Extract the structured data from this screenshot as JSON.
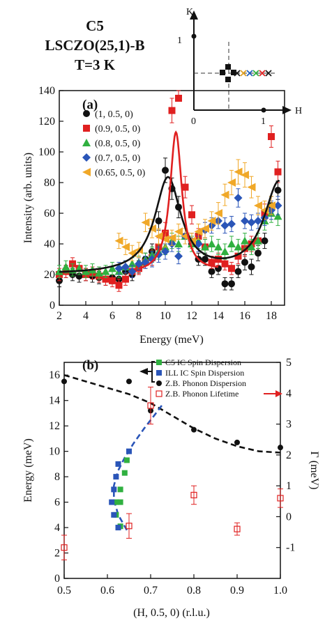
{
  "title": {
    "line1": "C5",
    "line2": "LSCZO(25,1)-B",
    "line3": "T=3 K"
  },
  "inset": {
    "k_label": "K",
    "h_label": "H",
    "tick_0": "0",
    "tick_1_h": "1",
    "tick_1_k": "1",
    "cross_colors": [
      "#1a1a1a",
      "#e0a020",
      "#2060c0",
      "#30b040",
      "#e02020",
      "#1a1a1a"
    ]
  },
  "chart_data": [
    {
      "panel": "(a)",
      "type": "scatter",
      "xlabel": "Energy (meV)",
      "ylabel": "Intensity (arb. units)",
      "xlim": [
        2,
        19
      ],
      "ylim": [
        0,
        140
      ],
      "xticks": [
        2,
        4,
        6,
        8,
        10,
        12,
        14,
        16,
        18
      ],
      "yticks": [
        0,
        20,
        40,
        60,
        80,
        100,
        120,
        140
      ],
      "legend_position": "top-left",
      "series": [
        {
          "name": "(1, 0.5, 0)",
          "color": "#111111",
          "marker": "circle",
          "x": [
            2,
            2.5,
            3,
            3.5,
            4,
            4.5,
            5,
            5.5,
            6,
            6.5,
            7,
            7.5,
            8,
            8.5,
            9,
            9.5,
            10,
            10.5,
            11,
            11.5,
            12,
            12.5,
            13,
            13.5,
            14,
            14.5,
            15,
            15.5,
            16,
            16.5,
            17,
            17.5,
            18,
            18.5
          ],
          "y": [
            16,
            22,
            20,
            19,
            20,
            19,
            18,
            17,
            18,
            17,
            22,
            20,
            25,
            30,
            35,
            55,
            88,
            76,
            64,
            45,
            40,
            30,
            30,
            22,
            24,
            14,
            14,
            22,
            28,
            25,
            34,
            42,
            65,
            75
          ],
          "errors": [
            4,
            4,
            4,
            4,
            4,
            4,
            4,
            4,
            4,
            4,
            4,
            4,
            4,
            4,
            5,
            6,
            8,
            7,
            7,
            5,
            5,
            4,
            4,
            4,
            4,
            4,
            4,
            4,
            5,
            5,
            5,
            5,
            6,
            6
          ]
        },
        {
          "name": "(0.9, 0.5, 0)",
          "color": "#e02020",
          "marker": "square",
          "x": [
            2,
            2.5,
            3,
            3.5,
            4,
            4.5,
            5,
            5.5,
            6,
            6.5,
            7,
            7.5,
            8,
            8.5,
            9,
            9.5,
            10,
            10.5,
            11,
            11.5,
            12,
            12.5,
            13,
            13.5,
            14,
            14.5,
            15,
            15.5,
            16,
            16.5,
            17,
            17.5,
            18,
            18.5
          ],
          "y": [
            20,
            22,
            27,
            24,
            20,
            21,
            19,
            17,
            16,
            13,
            17,
            22,
            24,
            28,
            31,
            38,
            47,
            127,
            142,
            77,
            59,
            45,
            38,
            28,
            30,
            27,
            24,
            32,
            37,
            40,
            42,
            60,
            110,
            87
          ],
          "errors": [
            4,
            4,
            4,
            4,
            4,
            4,
            4,
            4,
            4,
            4,
            4,
            4,
            4,
            4,
            5,
            6,
            7,
            8,
            8,
            7,
            6,
            5,
            5,
            4,
            4,
            4,
            4,
            5,
            5,
            5,
            5,
            6,
            7,
            7
          ]
        },
        {
          "name": "(0.8, 0.5, 0)",
          "color": "#30b040",
          "marker": "triangle",
          "x": [
            2,
            2.5,
            3,
            3.5,
            4,
            4.5,
            5,
            5.5,
            6,
            6.5,
            7,
            7.5,
            8,
            8.5,
            9,
            9.5,
            10,
            10.5,
            11,
            11.5,
            12,
            12.5,
            13,
            13.5,
            14,
            14.5,
            15,
            15.5,
            16,
            16.5,
            17,
            17.5,
            18,
            18.5
          ],
          "y": [
            22,
            25,
            23,
            24,
            22,
            23,
            21,
            22,
            24,
            22,
            25,
            27,
            28,
            30,
            33,
            35,
            38,
            42,
            40,
            45,
            40,
            42,
            38,
            40,
            38,
            35,
            40,
            38,
            42,
            38,
            42,
            55,
            60,
            58
          ],
          "errors": [
            4,
            4,
            4,
            4,
            4,
            4,
            4,
            4,
            4,
            4,
            4,
            4,
            4,
            4,
            5,
            5,
            5,
            5,
            5,
            5,
            5,
            5,
            5,
            5,
            5,
            5,
            5,
            5,
            5,
            5,
            5,
            6,
            6,
            6
          ]
        },
        {
          "name": "(0.7, 0.5, 0)",
          "color": "#2a55b8",
          "marker": "diamond",
          "x": [
            6.5,
            7,
            7.5,
            8,
            8.5,
            9,
            9.5,
            10,
            10.5,
            11,
            11.5,
            12,
            12.5,
            13,
            13.5,
            14,
            14.5,
            15,
            15.5,
            16,
            16.5,
            17,
            17.5,
            18,
            18.5
          ],
          "y": [
            24,
            25,
            22,
            27,
            28,
            30,
            33,
            35,
            40,
            32,
            45,
            42,
            40,
            49,
            52,
            55,
            52,
            53,
            70,
            55,
            54,
            55,
            57,
            62,
            65
          ],
          "errors": [
            4,
            4,
            4,
            4,
            4,
            5,
            5,
            5,
            5,
            5,
            5,
            5,
            5,
            5,
            5,
            5,
            5,
            5,
            6,
            5,
            5,
            5,
            5,
            6,
            6
          ]
        },
        {
          "name": "(0.65, 0.5, 0)",
          "color": "#f0a828",
          "marker": "left-triangle",
          "x": [
            6.5,
            7,
            7.5,
            8,
            8.5,
            9,
            9.5,
            10,
            10.5,
            11,
            11.5,
            12,
            12.5,
            13,
            13.5,
            14,
            14.5,
            15,
            15.5,
            16,
            16.5,
            17,
            17.5,
            18
          ],
          "y": [
            42,
            38,
            34,
            36,
            54,
            50,
            45,
            43,
            44,
            48,
            45,
            42,
            48,
            50,
            55,
            60,
            72,
            80,
            87,
            85,
            77,
            65,
            62,
            65
          ],
          "errors": [
            5,
            5,
            5,
            5,
            6,
            6,
            5,
            5,
            5,
            5,
            5,
            5,
            5,
            6,
            6,
            7,
            7,
            8,
            8,
            8,
            7,
            6,
            6,
            6
          ]
        }
      ]
    },
    {
      "panel": "(b)",
      "type": "scatter",
      "xlabel": "(H, 0.5, 0) (r.l.u.)",
      "ylabel": "Energy (meV)",
      "y2label": "Γ (meV)",
      "xlim": [
        0.5,
        1.0
      ],
      "ylim": [
        0,
        17
      ],
      "y2lim": [
        -2,
        5
      ],
      "xticks": [
        0.5,
        0.6,
        0.7,
        0.8,
        0.9,
        1.0
      ],
      "yticks": [
        0,
        2,
        4,
        6,
        8,
        10,
        12,
        14,
        16
      ],
      "y2ticks": [
        -1,
        0,
        1,
        2,
        3,
        4,
        5
      ],
      "legend_position": "top-right",
      "series": [
        {
          "name": "C5 IC Spin Dispersion",
          "color": "#30b040",
          "marker": "square",
          "x": [
            0.64,
            0.645,
            0.63,
            0.62,
            0.62,
            0.63,
            0.63
          ],
          "y": [
            8.3,
            9.3,
            7.0,
            6.0,
            5.0,
            6.0,
            4.1
          ]
        },
        {
          "name": "ILL IC Spin Dispersion",
          "color": "#2a55b8",
          "marker": "square",
          "x": [
            0.65,
            0.625,
            0.62,
            0.615,
            0.61,
            0.615,
            0.625
          ],
          "y": [
            10.0,
            9.0,
            8.0,
            7.0,
            6.0,
            5.0,
            4.0
          ]
        },
        {
          "name": "Z.B. Phonon Dispersion",
          "color": "#111111",
          "marker": "circle",
          "x": [
            0.5,
            0.65,
            0.7,
            0.8,
            0.9,
            1.0
          ],
          "y": [
            15.5,
            15.5,
            13.2,
            11.7,
            10.7,
            10.3
          ]
        },
        {
          "name": "Z.B. Phonon Lifetime",
          "color": "#e02020",
          "marker": "open-square",
          "axis": "right",
          "x": [
            0.5,
            0.65,
            0.7,
            0.8,
            0.9,
            1.0
          ],
          "y": [
            -1.0,
            -0.3,
            3.6,
            0.7,
            -0.4,
            0.6
          ],
          "errors": [
            0.4,
            0.4,
            0.6,
            0.3,
            0.2,
            0.3
          ]
        }
      ]
    }
  ]
}
